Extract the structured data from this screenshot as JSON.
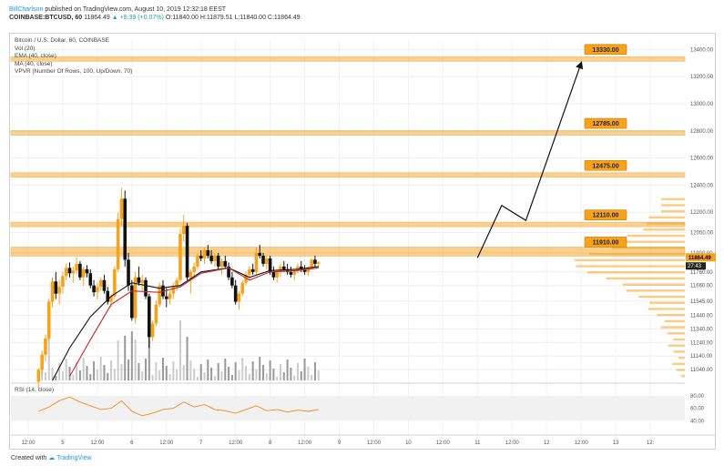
{
  "header": {
    "author": "BillCharlson",
    "published": "published on TradingView.com, August 10, 2019 12:32:18 EEST",
    "symbol": "COINBASE:BTCUSD, 60",
    "quote": "11864.49",
    "change": "▲ +8.39 (+0.07%)",
    "ohlc": "O:11840.00 H:11879.51 L:11840.00 C:11864.49"
  },
  "legend": {
    "title": "Bitcoin / U.S. Dollar, 60, COINBASE",
    "vol": "Vol (20)",
    "ema": "EMA (40, close)",
    "ma": "MA (40, close)",
    "vpvr": "VPVR (Number Of Rows, 100, Up/Down, 70)"
  },
  "rsi": {
    "label": "RSI (14, close)",
    "ticks": [
      "80.00",
      "60.00",
      "40.00"
    ]
  },
  "footer": {
    "created": "Created with",
    "brand": "TradingView"
  },
  "colors": {
    "bull": "#f7a21b",
    "bear": "#111111",
    "level": "#f7a21b",
    "ema": "#111111",
    "ma": "#c62828",
    "rsi": "#f28b1e"
  },
  "chart_data": {
    "type": "line",
    "price_axis": {
      "ticks": [
        13400,
        13200,
        13000,
        12800,
        12600,
        12400,
        12200,
        12050,
        11900,
        11760,
        11660,
        11545,
        11440,
        11340,
        11240,
        11140,
        11040
      ]
    },
    "time_axis": [
      "12:00",
      "5",
      "12:00",
      "6",
      "12:00",
      "7",
      "12:00",
      "8",
      "12:00",
      "9",
      "12:00",
      "10",
      "12:00",
      "11",
      "12:00",
      "12",
      "12:00",
      "13",
      "12:"
    ],
    "levels": [
      {
        "label": "13330.00",
        "value": 13330
      },
      {
        "label": "12785.00",
        "value": 12785
      },
      {
        "label": "12475.00",
        "value": 12475
      },
      {
        "label": "12110.00",
        "value": 12110
      },
      {
        "label": "11910.00",
        "value": 11910
      }
    ],
    "current_price": "11864.49",
    "countdown": "27:43",
    "projection": [
      {
        "t": 10.5,
        "p": 11864
      },
      {
        "t": 10.85,
        "p": 12250
      },
      {
        "t": 11.2,
        "p": 12140
      },
      {
        "t": 12.0,
        "p": 13300
      }
    ],
    "candles": [
      [
        4.15,
        10950,
        11050,
        10900,
        11040
      ],
      [
        4.2,
        11040,
        11180,
        11000,
        11150
      ],
      [
        4.25,
        11150,
        11300,
        11100,
        11270
      ],
      [
        4.3,
        11270,
        11560,
        11250,
        11540
      ],
      [
        4.35,
        11540,
        11720,
        11500,
        11690
      ],
      [
        4.4,
        11690,
        11760,
        11560,
        11600
      ],
      [
        4.45,
        11600,
        11700,
        11520,
        11650
      ],
      [
        4.5,
        11650,
        11760,
        11600,
        11730
      ],
      [
        4.55,
        11730,
        11820,
        11700,
        11790
      ],
      [
        4.6,
        11790,
        11830,
        11720,
        11750
      ],
      [
        4.65,
        11750,
        11800,
        11680,
        11770
      ],
      [
        4.7,
        11770,
        11870,
        11740,
        11820
      ],
      [
        4.75,
        11820,
        11840,
        11700,
        11720
      ],
      [
        4.8,
        11720,
        11800,
        11660,
        11780
      ],
      [
        4.85,
        11780,
        11810,
        11720,
        11750
      ],
      [
        4.9,
        11750,
        11780,
        11640,
        11660
      ],
      [
        4.95,
        11660,
        11700,
        11580,
        11610
      ],
      [
        5.0,
        11610,
        11680,
        11560,
        11650
      ],
      [
        5.05,
        11650,
        11720,
        11620,
        11700
      ],
      [
        5.1,
        11700,
        11740,
        11600,
        11620
      ],
      [
        5.15,
        11620,
        11650,
        11520,
        11540
      ],
      [
        5.2,
        11540,
        11600,
        11500,
        11580
      ],
      [
        5.25,
        11580,
        11800,
        11560,
        11780
      ],
      [
        5.3,
        11780,
        12200,
        11760,
        12150
      ],
      [
        5.35,
        12150,
        12380,
        12100,
        12300
      ],
      [
        5.4,
        12300,
        12360,
        11800,
        11850
      ],
      [
        5.45,
        11850,
        11900,
        11620,
        11660
      ],
      [
        5.5,
        11660,
        11700,
        11400,
        11420
      ],
      [
        5.55,
        11420,
        11760,
        11380,
        11720
      ],
      [
        5.6,
        11720,
        11800,
        11660,
        11680
      ],
      [
        5.65,
        11680,
        11740,
        11620,
        11700
      ],
      [
        5.7,
        11700,
        11720,
        11560,
        11580
      ],
      [
        5.75,
        11580,
        11600,
        11200,
        11280
      ],
      [
        5.8,
        11280,
        11400,
        11250,
        11380
      ],
      [
        5.85,
        11380,
        11550,
        11360,
        11520
      ],
      [
        5.9,
        11520,
        11680,
        11500,
        11660
      ],
      [
        5.95,
        11660,
        11700,
        11560,
        11580
      ],
      [
        6.0,
        11580,
        11640,
        11500,
        11560
      ],
      [
        6.05,
        11560,
        11620,
        11520,
        11600
      ],
      [
        6.1,
        11600,
        11680,
        11560,
        11650
      ],
      [
        6.15,
        11650,
        11720,
        11620,
        11700
      ],
      [
        6.2,
        11700,
        12080,
        11680,
        12040
      ],
      [
        6.25,
        12040,
        12180,
        11980,
        12100
      ],
      [
        6.3,
        12100,
        12120,
        11700,
        11720
      ],
      [
        6.35,
        11720,
        11780,
        11600,
        11760
      ],
      [
        6.4,
        11760,
        11830,
        11720,
        11800
      ],
      [
        6.45,
        11800,
        11900,
        11780,
        11880
      ],
      [
        6.5,
        11880,
        11920,
        11840,
        11860
      ],
      [
        6.55,
        11860,
        11940,
        11820,
        11920
      ],
      [
        6.6,
        11920,
        11960,
        11860,
        11880
      ],
      [
        6.65,
        11880,
        11920,
        11820,
        11840
      ],
      [
        6.7,
        11840,
        11900,
        11800,
        11880
      ],
      [
        6.75,
        11880,
        11900,
        11780,
        11800
      ],
      [
        6.8,
        11800,
        11860,
        11740,
        11840
      ],
      [
        6.85,
        11840,
        11880,
        11780,
        11800
      ],
      [
        6.9,
        11800,
        11830,
        11700,
        11720
      ],
      [
        6.95,
        11720,
        11760,
        11640,
        11660
      ],
      [
        7.0,
        11660,
        11700,
        11520,
        11540
      ],
      [
        7.05,
        11540,
        11620,
        11480,
        11600
      ],
      [
        7.1,
        11600,
        11700,
        11580,
        11680
      ],
      [
        7.15,
        11680,
        11760,
        11660,
        11740
      ],
      [
        7.2,
        11740,
        11800,
        11700,
        11780
      ],
      [
        7.25,
        11780,
        11820,
        11740,
        11760
      ],
      [
        7.3,
        11760,
        11940,
        11740,
        11900
      ],
      [
        7.35,
        11900,
        11960,
        11860,
        11880
      ],
      [
        7.4,
        11880,
        11900,
        11800,
        11820
      ],
      [
        7.45,
        11820,
        11880,
        11780,
        11860
      ],
      [
        7.5,
        11860,
        11880,
        11740,
        11760
      ],
      [
        7.55,
        11760,
        11800,
        11700,
        11720
      ],
      [
        7.6,
        11720,
        11780,
        11680,
        11760
      ],
      [
        7.65,
        11760,
        11820,
        11720,
        11800
      ],
      [
        7.7,
        11800,
        11840,
        11760,
        11780
      ],
      [
        7.75,
        11780,
        11820,
        11740,
        11760
      ],
      [
        7.8,
        11760,
        11800,
        11720,
        11740
      ],
      [
        7.85,
        11740,
        11780,
        11700,
        11770
      ],
      [
        7.9,
        11770,
        11820,
        11750,
        11800
      ],
      [
        7.95,
        11800,
        11840,
        11760,
        11780
      ],
      [
        8.0,
        11780,
        11810,
        11740,
        11760
      ],
      [
        8.05,
        11760,
        11800,
        11730,
        11790
      ],
      [
        8.1,
        11790,
        11860,
        11780,
        11850
      ],
      [
        8.15,
        11850,
        11880,
        11800,
        11820
      ],
      [
        8.2,
        11820,
        11840,
        11790,
        11830
      ]
    ],
    "ema_line": [
      [
        4.35,
        10960
      ],
      [
        4.6,
        11200
      ],
      [
        4.9,
        11430
      ],
      [
        5.2,
        11580
      ],
      [
        5.5,
        11680
      ],
      [
        5.9,
        11640
      ],
      [
        6.2,
        11660
      ],
      [
        6.5,
        11760
      ],
      [
        6.9,
        11790
      ],
      [
        7.2,
        11720
      ],
      [
        7.5,
        11770
      ],
      [
        7.9,
        11780
      ],
      [
        8.2,
        11800
      ]
    ],
    "ma_line": [
      [
        4.6,
        10990
      ],
      [
        4.9,
        11260
      ],
      [
        5.2,
        11520
      ],
      [
        5.5,
        11620
      ],
      [
        5.9,
        11610
      ],
      [
        6.2,
        11650
      ],
      [
        6.5,
        11750
      ],
      [
        6.9,
        11790
      ],
      [
        7.2,
        11700
      ],
      [
        7.5,
        11760
      ],
      [
        7.9,
        11770
      ],
      [
        8.2,
        11790
      ]
    ],
    "rsi_line": [
      [
        4.15,
        55
      ],
      [
        4.3,
        62
      ],
      [
        4.45,
        72
      ],
      [
        4.6,
        78
      ],
      [
        4.75,
        70
      ],
      [
        4.9,
        64
      ],
      [
        5.05,
        58
      ],
      [
        5.2,
        60
      ],
      [
        5.35,
        72
      ],
      [
        5.5,
        55
      ],
      [
        5.65,
        48
      ],
      [
        5.8,
        52
      ],
      [
        5.95,
        58
      ],
      [
        6.1,
        60
      ],
      [
        6.25,
        70
      ],
      [
        6.4,
        62
      ],
      [
        6.55,
        66
      ],
      [
        6.7,
        58
      ],
      [
        6.85,
        56
      ],
      [
        7.0,
        52
      ],
      [
        7.15,
        58
      ],
      [
        7.3,
        64
      ],
      [
        7.45,
        56
      ],
      [
        7.6,
        58
      ],
      [
        7.75,
        54
      ],
      [
        7.9,
        57
      ],
      [
        8.05,
        55
      ],
      [
        8.2,
        58
      ]
    ],
    "rsi_range": [
      40,
      80
    ]
  }
}
